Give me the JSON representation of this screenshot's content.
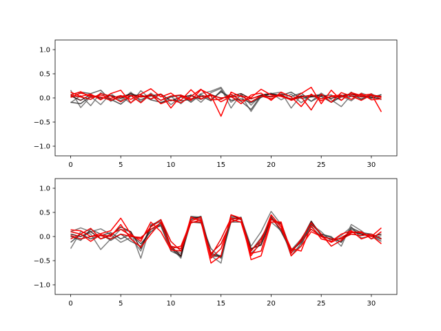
{
  "chart_data": [
    {
      "type": "line",
      "x": [
        0,
        1,
        2,
        3,
        4,
        5,
        6,
        7,
        8,
        9,
        10,
        11,
        12,
        13,
        14,
        15,
        16,
        17,
        18,
        19,
        20,
        21,
        22,
        23,
        24,
        25,
        26,
        27,
        28,
        29,
        30,
        31
      ],
      "xlim": [
        -1.55,
        32.55
      ],
      "ylim": [
        -1.2,
        1.2
      ],
      "xticks": [
        0,
        5,
        10,
        15,
        20,
        25,
        30
      ],
      "yticks": [
        -1.0,
        -0.5,
        0.0,
        0.5,
        1.0
      ],
      "xtick_labels": [
        "0",
        "5",
        "10",
        "15",
        "20",
        "25",
        "30"
      ],
      "ytick_labels": [
        "−1.0",
        "−0.5",
        "0.0",
        "0.5",
        "1.0"
      ],
      "grid": false,
      "series": [
        {
          "color": "#666666",
          "values": [
            0.16,
            -0.2,
            0.03,
            -0.14,
            0.09,
            -0.06,
            0.12,
            -0.08,
            0.1,
            -0.05,
            0.03,
            -0.12,
            0.07,
            -0.09,
            0.11,
            0.2,
            -0.21,
            0.08,
            -0.15,
            0.06,
            0.1,
            -0.04,
            0.08,
            -0.1,
            0.05,
            0.07,
            -0.09,
            0.04,
            -0.06,
            0.1,
            0.03,
            0.06
          ]
        },
        {
          "color": "#666666",
          "values": [
            -0.1,
            0.05,
            -0.16,
            0.11,
            -0.07,
            0.04,
            -0.11,
            0.15,
            -0.03,
            0.07,
            -0.14,
            0.02,
            -0.06,
            0.09,
            0.14,
            0.22,
            -0.09,
            0.05,
            -0.28,
            0.03,
            0.09,
            0.12,
            -0.21,
            0.05,
            -0.07,
            0.1,
            -0.04,
            -0.18,
            0.06,
            -0.02,
            0.09,
            -0.04
          ]
        },
        {
          "color": "#444444",
          "values": [
            0.07,
            0.12,
            0.09,
            0.16,
            -0.05,
            0.03,
            0.08,
            -0.04,
            0.06,
            -0.11,
            0.02,
            0.05,
            -0.09,
            0.07,
            -0.03,
            0.12,
            0.02,
            -0.07,
            -0.24,
            0.05,
            0.03,
            0.08,
            0.03,
            0.1,
            -0.07,
            0.04,
            0.06,
            -0.05,
            0.12,
            -0.03,
            0.07,
            0.02
          ]
        },
        {
          "color": "#333333",
          "values": [
            -0.09,
            -0.12,
            0.04,
            0.01,
            -0.03,
            -0.13,
            0.04,
            0.07,
            -0.04,
            -0.09,
            -0.05,
            -0.06,
            -0.03,
            0.04,
            -0.06,
            0.15,
            -0.05,
            -0.02,
            -0.1,
            0.01,
            0.09,
            0.05,
            0.12,
            -0.01,
            0.02,
            0.03,
            -0.09,
            0.02,
            0.03,
            0.04,
            -0.01,
            0.07
          ]
        },
        {
          "color": "#330000",
          "values": [
            0.04,
            -0.05,
            0.07,
            -0.02,
            0.05,
            -0.01,
            0.09,
            0.02,
            0.04,
            0.08,
            -0.06,
            0.02,
            0.05,
            -0.03,
            0.07,
            -0.01,
            0.04,
            0.09,
            -0.02,
            0.06,
            0.08,
            0.04,
            -0.02,
            0.04,
            0.03,
            0.06,
            -0.01,
            0.05,
            0.08,
            0.06,
            0.01,
            -0.02
          ]
        },
        {
          "color": "#ff0000",
          "values": [
            0.06,
            0.13,
            0.01,
            0.06,
            -0.01,
            0.05,
            -0.03,
            0.08,
            0.19,
            0.02,
            0.1,
            -0.05,
            0.17,
            -0.02,
            0.05,
            -0.38,
            0.12,
            0.03,
            0.01,
            0.18,
            0.06,
            0.03,
            -0.04,
            0.09,
            0.22,
            -0.12,
            0.16,
            -0.05,
            0.11,
            0.05,
            0.08,
            -0.29
          ]
        },
        {
          "color": "#ff0000",
          "values": [
            0.12,
            0.03,
            0.08,
            -0.04,
            0.09,
            0.16,
            -0.1,
            0.05,
            -0.02,
            0.08,
            -0.21,
            0.04,
            -0.05,
            0.17,
            0.07,
            -0.08,
            0.03,
            -0.12,
            0.06,
            0.1,
            -0.05,
            0.12,
            0.02,
            -0.18,
            0.08,
            -0.06,
            0.04,
            0.06,
            -0.03,
            0.09,
            -0.04,
            -0.02
          ]
        },
        {
          "color": "#ee0000",
          "values": [
            0.01,
            0.1,
            0.05,
            0.02,
            -0.05,
            0.02,
            0.05,
            -0.1,
            0.08,
            -0.12,
            -0.04,
            -0.1,
            0.03,
            0.18,
            -0.04,
            -0.03,
            0.08,
            -0.06,
            -0.01,
            0.04,
            -0.02,
            0.07,
            -0.05,
            0.02,
            -0.25,
            0.08,
            -0.09,
            0.11,
            0.04,
            -0.05,
            0.06,
            0.03
          ]
        },
        {
          "color": "#dd0000",
          "values": [
            0.05,
            0.02,
            -0.03,
            0.09,
            0.04,
            -0.08,
            0.05,
            0.02,
            0.07,
            -0.05,
            0.04,
            0.06,
            -0.02,
            0.03,
            0.05,
            0.0,
            0.02,
            0.05,
            -0.08,
            0.04,
            0.02,
            0.06,
            -0.03,
            0.02,
            0.06,
            -0.02,
            0.03,
            0.02,
            0.08,
            0.02,
            0.05,
            0.01
          ]
        }
      ]
    },
    {
      "type": "line",
      "x": [
        0,
        1,
        2,
        3,
        4,
        5,
        6,
        7,
        8,
        9,
        10,
        11,
        12,
        13,
        14,
        15,
        16,
        17,
        18,
        19,
        20,
        21,
        22,
        23,
        24,
        25,
        26,
        27,
        28,
        29,
        30,
        31
      ],
      "xlim": [
        -1.55,
        32.55
      ],
      "ylim": [
        -1.2,
        1.2
      ],
      "xticks": [
        0,
        5,
        10,
        15,
        20,
        25,
        30
      ],
      "yticks": [
        -1.0,
        -0.5,
        0.0,
        0.5,
        1.0
      ],
      "xtick_labels": [
        "0",
        "5",
        "10",
        "15",
        "20",
        "25",
        "30"
      ],
      "ytick_labels": [
        "−1.0",
        "−0.5",
        "0.0",
        "0.5",
        "1.0"
      ],
      "grid": false,
      "series": [
        {
          "color": "#666666",
          "values": [
            -0.25,
            0.1,
            0.05,
            -0.27,
            -0.05,
            0.15,
            0.1,
            -0.45,
            0.25,
            0.3,
            -0.22,
            -0.45,
            0.42,
            0.4,
            -0.4,
            -0.55,
            0.42,
            0.38,
            -0.2,
            0.1,
            0.52,
            0.25,
            -0.33,
            -0.2,
            0.3,
            0.05,
            0.0,
            -0.2,
            0.25,
            0.12,
            -0.05,
            0.02
          ]
        },
        {
          "color": "#666666",
          "values": [
            0.1,
            0.18,
            0.1,
            0.16,
            0.04,
            -0.12,
            -0.02,
            -0.3,
            0.2,
            0.33,
            -0.24,
            -0.35,
            0.38,
            0.35,
            -0.42,
            -0.4,
            0.4,
            0.35,
            -0.3,
            -0.02,
            0.3,
            0.12,
            -0.28,
            -0.05,
            0.25,
            0.1,
            -0.1,
            0.02,
            0.2,
            -0.03,
            0.02,
            -0.06
          ]
        },
        {
          "color": "#444444",
          "values": [
            0.0,
            -0.08,
            0.15,
            0.05,
            -0.08,
            0.05,
            -0.1,
            -0.2,
            0.15,
            0.22,
            -0.3,
            -0.4,
            0.3,
            0.28,
            -0.25,
            -0.45,
            0.3,
            0.3,
            -0.35,
            -0.15,
            0.4,
            0.2,
            -0.4,
            -0.15,
            0.2,
            0.0,
            -0.05,
            -0.1,
            0.15,
            0.05,
            0.02,
            -0.1
          ]
        },
        {
          "color": "#333333",
          "values": [
            -0.12,
            0.05,
            -0.05,
            0.02,
            0.08,
            -0.05,
            0.05,
            -0.15,
            0.1,
            0.25,
            -0.25,
            -0.42,
            0.35,
            0.42,
            -0.35,
            -0.4,
            0.35,
            0.4,
            -0.28,
            -0.1,
            0.42,
            0.1,
            -0.3,
            -0.12,
            0.25,
            0.05,
            -0.02,
            -0.12,
            0.18,
            0.08,
            0.05,
            -0.04
          ]
        },
        {
          "color": "#330000",
          "values": [
            0.05,
            0.0,
            0.1,
            -0.05,
            0.02,
            0.2,
            0.1,
            -0.25,
            0.22,
            0.35,
            -0.2,
            -0.4,
            0.4,
            0.38,
            -0.38,
            -0.42,
            0.45,
            0.35,
            -0.25,
            -0.18,
            0.35,
            0.28,
            -0.3,
            -0.08,
            0.32,
            0.02,
            -0.06,
            -0.05,
            0.1,
            0.05,
            0.0,
            0.05
          ]
        },
        {
          "color": "#ff0000",
          "values": [
            0.14,
            0.12,
            0.0,
            0.06,
            0.12,
            0.38,
            0.05,
            -0.1,
            0.3,
            0.1,
            -0.28,
            -0.3,
            0.4,
            0.32,
            -0.55,
            -0.4,
            0.45,
            0.38,
            -0.48,
            -0.4,
            0.3,
            0.3,
            -0.4,
            -0.2,
            0.1,
            0.0,
            -0.12,
            -0.02,
            0.1,
            0.08,
            0.0,
            0.18
          ]
        },
        {
          "color": "#ff0000",
          "values": [
            -0.05,
            0.05,
            -0.1,
            0.04,
            0.0,
            0.25,
            -0.05,
            -0.22,
            0.05,
            0.3,
            -0.25,
            -0.2,
            0.32,
            0.4,
            -0.45,
            -0.25,
            0.35,
            0.3,
            -0.4,
            -0.1,
            0.45,
            0.2,
            -0.25,
            -0.3,
            0.22,
            -0.05,
            -0.1,
            0.05,
            0.12,
            -0.05,
            0.02,
            -0.15
          ]
        },
        {
          "color": "#ee0000",
          "values": [
            0.1,
            0.05,
            0.17,
            -0.05,
            0.05,
            0.15,
            0.02,
            -0.05,
            0.2,
            0.35,
            -0.1,
            -0.3,
            0.28,
            0.35,
            -0.4,
            -0.05,
            0.38,
            0.36,
            -0.35,
            -0.3,
            0.36,
            0.25,
            -0.35,
            -0.05,
            0.28,
            0.05,
            -0.2,
            -0.08,
            0.08,
            0.1,
            -0.05,
            0.1
          ]
        },
        {
          "color": "#dd0000",
          "values": [
            0.02,
            -0.05,
            0.0,
            0.02,
            -0.05,
            0.05,
            0.0,
            -0.02,
            0.15,
            0.28,
            -0.2,
            -0.25,
            0.3,
            0.3,
            -0.35,
            -0.15,
            0.3,
            0.38,
            -0.3,
            -0.05,
            0.38,
            0.15,
            -0.3,
            -0.1,
            0.15,
            0.0,
            -0.05,
            -0.05,
            0.05,
            0.02,
            0.05,
            -0.05
          ]
        }
      ]
    }
  ]
}
